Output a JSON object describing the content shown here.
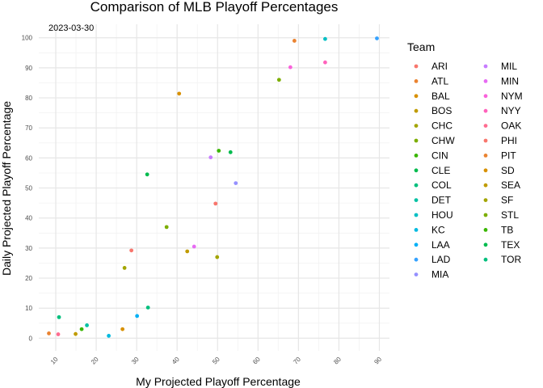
{
  "chart_data": {
    "type": "scatter",
    "title": "Comparison of MLB Playoff Percentages",
    "xlabel": "My Projected Playoff Percentage",
    "ylabel": "Daily Projected Playoff Percentage",
    "annotation": "2023-03-30",
    "xlim": [
      5.8,
      92.5
    ],
    "ylim": [
      -4.2,
      104.5
    ],
    "x_ticks": [
      10,
      20,
      30,
      40,
      50,
      60,
      70,
      80,
      90
    ],
    "y_ticks": [
      0,
      10,
      20,
      30,
      40,
      50,
      60,
      70,
      80,
      90,
      100
    ],
    "grid": true,
    "legend": {
      "title": "Team",
      "position": "right",
      "columns": 2
    },
    "points": [
      {
        "team": "ARI",
        "x": 28.7,
        "y": 29.2,
        "color": "#F8766D"
      },
      {
        "team": "ATL",
        "x": 69.0,
        "y": 99.0,
        "color": "#EA8331"
      },
      {
        "team": "BAL",
        "x": 26.5,
        "y": 3.0,
        "color": "#D89000"
      },
      {
        "team": "BOS",
        "x": 14.9,
        "y": 1.4,
        "color": "#C09B00"
      },
      {
        "team": "CHC",
        "x": 27.0,
        "y": 23.4,
        "color": "#A3A500"
      },
      {
        "team": "CHW",
        "x": 37.4,
        "y": 37.0,
        "color": "#7CAE00"
      },
      {
        "team": "CIN",
        "x": 16.4,
        "y": 3.0,
        "color": "#39B600"
      },
      {
        "team": "CLE",
        "x": 32.6,
        "y": 54.5,
        "color": "#00BB4E"
      },
      {
        "team": "COL",
        "x": 10.8,
        "y": 7.0,
        "color": "#00BF7D"
      },
      {
        "team": "DET",
        "x": 17.7,
        "y": 4.3,
        "color": "#00C1A3"
      },
      {
        "team": "HOU",
        "x": 76.6,
        "y": 99.6,
        "color": "#00BFC4"
      },
      {
        "team": "KC",
        "x": 23.1,
        "y": 0.8,
        "color": "#00BAE0"
      },
      {
        "team": "LAA",
        "x": 30.1,
        "y": 7.4,
        "color": "#00B0F6"
      },
      {
        "team": "LAD",
        "x": 89.4,
        "y": 99.8,
        "color": "#35A2FF"
      },
      {
        "team": "MIA",
        "x": 54.5,
        "y": 51.6,
        "color": "#9590FF"
      },
      {
        "team": "MIL",
        "x": 48.3,
        "y": 60.2,
        "color": "#C77CFF"
      },
      {
        "team": "MIN",
        "x": 44.2,
        "y": 30.5,
        "color": "#E76BF3"
      },
      {
        "team": "NYM",
        "x": 68.0,
        "y": 90.2,
        "color": "#FA62DB"
      },
      {
        "team": "NYY",
        "x": 76.6,
        "y": 91.8,
        "color": "#FF62BC"
      },
      {
        "team": "OAK",
        "x": 10.6,
        "y": 1.3,
        "color": "#FF6C90"
      },
      {
        "team": "PHI",
        "x": 49.5,
        "y": 44.8,
        "color": "#F8766D"
      },
      {
        "team": "PIT",
        "x": 8.3,
        "y": 1.6,
        "color": "#EA8331"
      },
      {
        "team": "SD",
        "x": 40.5,
        "y": 81.4,
        "color": "#D89000"
      },
      {
        "team": "SEA",
        "x": 42.5,
        "y": 28.9,
        "color": "#C09B00"
      },
      {
        "team": "SF",
        "x": 49.9,
        "y": 27.0,
        "color": "#A3A500"
      },
      {
        "team": "STL",
        "x": 65.2,
        "y": 86.0,
        "color": "#7CAE00"
      },
      {
        "team": "TB",
        "x": 50.3,
        "y": 62.4,
        "color": "#39B600"
      },
      {
        "team": "TEX",
        "x": 53.2,
        "y": 61.9,
        "color": "#00BB4E"
      },
      {
        "team": "TOR",
        "x": 32.8,
        "y": 10.2,
        "color": "#00BF7D"
      }
    ],
    "teams": [
      {
        "name": "ARI",
        "color": "#F8766D"
      },
      {
        "name": "ATL",
        "color": "#EA8331"
      },
      {
        "name": "BAL",
        "color": "#D89000"
      },
      {
        "name": "BOS",
        "color": "#C09B00"
      },
      {
        "name": "CHC",
        "color": "#A3A500"
      },
      {
        "name": "CHW",
        "color": "#7CAE00"
      },
      {
        "name": "CIN",
        "color": "#39B600"
      },
      {
        "name": "CLE",
        "color": "#00BB4E"
      },
      {
        "name": "COL",
        "color": "#00BF7D"
      },
      {
        "name": "DET",
        "color": "#00C1A3"
      },
      {
        "name": "HOU",
        "color": "#00BFC4"
      },
      {
        "name": "KC",
        "color": "#00BAE0"
      },
      {
        "name": "LAA",
        "color": "#00B0F6"
      },
      {
        "name": "LAD",
        "color": "#35A2FF"
      },
      {
        "name": "MIA",
        "color": "#9590FF"
      },
      {
        "name": "MIL",
        "color": "#C77CFF"
      },
      {
        "name": "MIN",
        "color": "#E76BF3"
      },
      {
        "name": "NYM",
        "color": "#FA62DB"
      },
      {
        "name": "NYY",
        "color": "#FF62BC"
      },
      {
        "name": "OAK",
        "color": "#FF6C90"
      },
      {
        "name": "PHI",
        "color": "#F8766D"
      },
      {
        "name": "PIT",
        "color": "#EA8331"
      },
      {
        "name": "SD",
        "color": "#D89000"
      },
      {
        "name": "SEA",
        "color": "#C09B00"
      },
      {
        "name": "SF",
        "color": "#A3A500"
      },
      {
        "name": "STL",
        "color": "#7CAE00"
      },
      {
        "name": "TB",
        "color": "#39B600"
      },
      {
        "name": "TEX",
        "color": "#00BB4E"
      },
      {
        "name": "TOR",
        "color": "#00BF7D"
      }
    ]
  }
}
